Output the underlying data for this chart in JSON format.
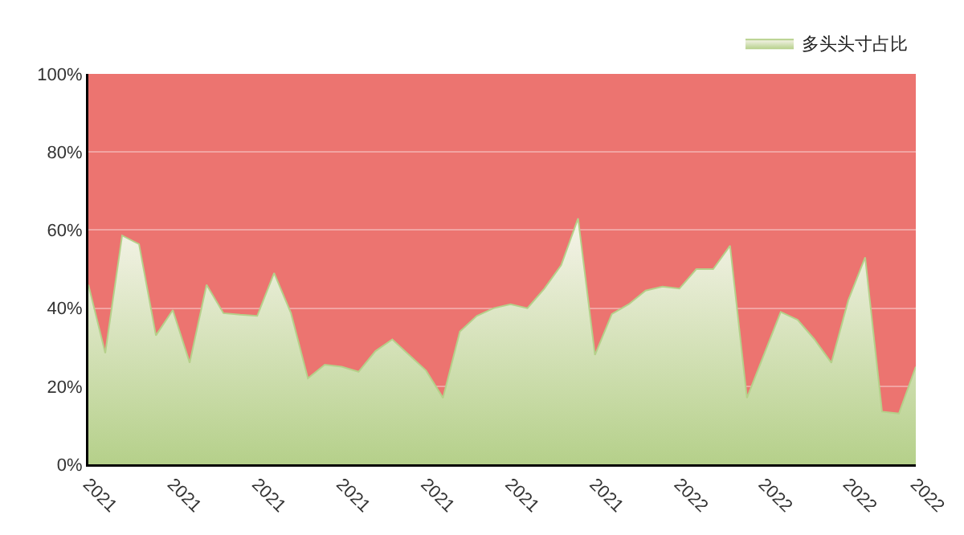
{
  "chart_data": {
    "type": "area",
    "categories": [
      "2021",
      null,
      null,
      null,
      null,
      "2021",
      null,
      null,
      null,
      null,
      "2021",
      null,
      null,
      null,
      null,
      "2021",
      null,
      null,
      null,
      null,
      "2021",
      null,
      null,
      null,
      null,
      "2021",
      null,
      null,
      null,
      null,
      "2021",
      null,
      null,
      null,
      null,
      "2022",
      null,
      null,
      null,
      null,
      "2022",
      null,
      null,
      null,
      null,
      "2022",
      null,
      null,
      null,
      "2022"
    ],
    "series": [
      {
        "name": "多头头寸占比",
        "color": "#b5d08a",
        "values": [
          46,
          28.5,
          58.6,
          56.4,
          33,
          39.5,
          26,
          46,
          38.7,
          38.3,
          38,
          49,
          38.7,
          22,
          25.5,
          25,
          23.7,
          29,
          32,
          28,
          24,
          17,
          34,
          38,
          40,
          41,
          40,
          45,
          51,
          63,
          28,
          38.5,
          41,
          44.5,
          45.5,
          45,
          50,
          50,
          56,
          17,
          28,
          39,
          37,
          32,
          26,
          42,
          53,
          13.5,
          13,
          25
        ]
      }
    ],
    "ylim": [
      0,
      100
    ],
    "yticks": [
      {
        "value": 0,
        "label": "0%"
      },
      {
        "value": 20,
        "label": "20%"
      },
      {
        "value": 40,
        "label": "40%"
      },
      {
        "value": 60,
        "label": "60%"
      },
      {
        "value": 80,
        "label": "80%"
      },
      {
        "value": 100,
        "label": "100%"
      }
    ],
    "grid": "y",
    "legend": "top right"
  }
}
